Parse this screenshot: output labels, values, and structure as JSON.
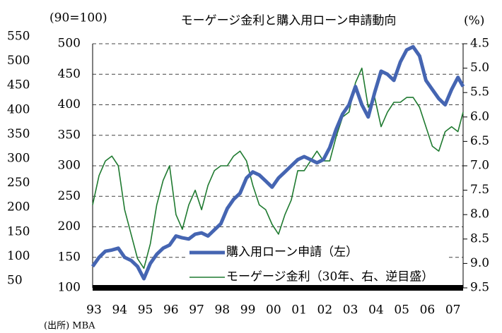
{
  "chart_data": {
    "type": "line",
    "title": "モーゲージ金利と購入用ローン申請動向",
    "ylabel": "(90=100)",
    "y2label": "(%)",
    "source": "(出所) MBA",
    "grid": true,
    "y2_inverted": true,
    "legend": "bottom",
    "xlim": [
      1993,
      2007.45
    ],
    "xticks": [
      {
        "value": 1993,
        "label": "93"
      },
      {
        "value": 1994,
        "label": "94"
      },
      {
        "value": 1995,
        "label": "95"
      },
      {
        "value": 1996,
        "label": "96"
      },
      {
        "value": 1997,
        "label": "97"
      },
      {
        "value": 1998,
        "label": "98"
      },
      {
        "value": 1999,
        "label": "99"
      },
      {
        "value": 2000,
        "label": "00"
      },
      {
        "value": 2001,
        "label": "01"
      },
      {
        "value": 2002,
        "label": "02"
      },
      {
        "value": 2003,
        "label": "03"
      },
      {
        "value": 2004,
        "label": "04"
      },
      {
        "value": 2005,
        "label": "05"
      },
      {
        "value": 2006,
        "label": "06"
      },
      {
        "value": 2007,
        "label": "07"
      }
    ],
    "ylim": [
      100,
      500
    ],
    "yticks": [
      100,
      150,
      200,
      250,
      300,
      350,
      400,
      450,
      500
    ],
    "y3lim": [
      50,
      550
    ],
    "y3ticks": [
      50,
      100,
      150,
      200,
      250,
      300,
      350,
      400,
      450,
      500,
      550
    ],
    "y2lim": [
      9.5,
      4.5
    ],
    "y2ticks": [
      4.5,
      {
        "value": 5,
        "label": "5.0"
      },
      5.5,
      {
        "value": 6,
        "label": "6.0"
      },
      6.5,
      {
        "value": 7,
        "label": "7.0"
      },
      7.5,
      {
        "value": 8,
        "label": "8.0"
      },
      8.5,
      {
        "value": 9,
        "label": "9.0"
      },
      9.5
    ],
    "x": [
      1993,
      1993.25,
      1993.5,
      1993.75,
      1994,
      1994.25,
      1994.5,
      1994.75,
      1995,
      1995.25,
      1995.5,
      1995.75,
      1996,
      1996.25,
      1996.5,
      1996.75,
      1997,
      1997.25,
      1997.5,
      1997.75,
      1998,
      1998.25,
      1998.5,
      1998.75,
      1999,
      1999.25,
      1999.5,
      1999.75,
      2000,
      2000.25,
      2000.5,
      2000.75,
      2001,
      2001.25,
      2001.5,
      2001.75,
      2002,
      2002.25,
      2002.5,
      2002.75,
      2003,
      2003.25,
      2003.5,
      2003.75,
      2004,
      2004.25,
      2004.5,
      2004.75,
      2005,
      2005.25,
      2005.5,
      2005.75,
      2006,
      2006.25,
      2006.5,
      2006.75,
      2007,
      2007.25,
      2007.45
    ],
    "series": [
      {
        "name": "購入用ローン申請（左）",
        "color": "#4565b2",
        "width": 5,
        "values": [
          135,
          150,
          160,
          162,
          165,
          150,
          145,
          135,
          115,
          140,
          155,
          165,
          170,
          185,
          182,
          180,
          188,
          190,
          185,
          195,
          205,
          230,
          245,
          255,
          280,
          290,
          285,
          275,
          265,
          280,
          290,
          300,
          310,
          315,
          310,
          305,
          310,
          330,
          360,
          385,
          400,
          430,
          400,
          380,
          420,
          455,
          450,
          440,
          470,
          490,
          495,
          480,
          440,
          425,
          410,
          400,
          425,
          445,
          430
        ]
      },
      {
        "name": "モーゲージ金利（30年、右、逆目盛）",
        "color": "#1f7a30",
        "width": 1.6,
        "axis": "y2",
        "values": [
          7.8,
          7.2,
          6.9,
          6.8,
          7.0,
          7.9,
          8.4,
          8.9,
          9.1,
          8.6,
          7.8,
          7.3,
          7.0,
          8.0,
          8.3,
          7.8,
          7.5,
          7.9,
          7.4,
          7.1,
          7.0,
          7.0,
          6.8,
          6.7,
          6.9,
          7.4,
          7.8,
          7.9,
          8.2,
          8.4,
          8.0,
          7.7,
          7.1,
          7.1,
          6.9,
          6.7,
          6.9,
          6.9,
          6.4,
          6.0,
          5.9,
          5.3,
          5.0,
          5.8,
          5.6,
          6.2,
          5.9,
          5.7,
          5.7,
          5.6,
          5.6,
          5.8,
          6.2,
          6.6,
          6.7,
          6.3,
          6.2,
          6.3,
          5.9
        ]
      }
    ]
  }
}
